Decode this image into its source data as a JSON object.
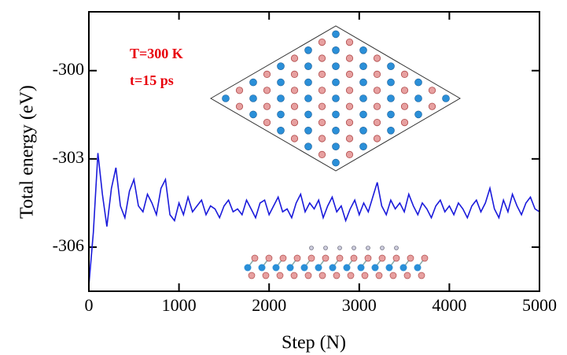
{
  "chart_data": {
    "type": "line",
    "x_label": "Step (N)",
    "y_label": "Total energy (eV)",
    "annotations": [
      "T=300 K",
      "t=15 ps"
    ],
    "xlim": [
      0,
      5000
    ],
    "xticks": [
      0,
      1000,
      2000,
      3000,
      4000,
      5000
    ],
    "ylim": [
      -307.5,
      -298
    ],
    "yticks": [
      -306,
      -303,
      -300
    ],
    "grid": false,
    "x": [
      0,
      50,
      100,
      150,
      200,
      250,
      300,
      350,
      400,
      450,
      500,
      550,
      600,
      650,
      700,
      750,
      800,
      850,
      900,
      950,
      1000,
      1050,
      1100,
      1150,
      1200,
      1250,
      1300,
      1350,
      1400,
      1450,
      1500,
      1550,
      1600,
      1650,
      1700,
      1750,
      1800,
      1850,
      1900,
      1950,
      2000,
      2050,
      2100,
      2150,
      2200,
      2250,
      2300,
      2350,
      2400,
      2450,
      2500,
      2550,
      2600,
      2650,
      2700,
      2750,
      2800,
      2850,
      2900,
      2950,
      3000,
      3050,
      3100,
      3150,
      3200,
      3250,
      3300,
      3350,
      3400,
      3450,
      3500,
      3550,
      3600,
      3650,
      3700,
      3750,
      3800,
      3850,
      3900,
      3950,
      4000,
      4050,
      4100,
      4150,
      4200,
      4250,
      4300,
      4350,
      4400,
      4450,
      4500,
      4550,
      4600,
      4650,
      4700,
      4750,
      4800,
      4850,
      4900,
      4950,
      5000
    ],
    "series": [
      {
        "color": "#1a1adb",
        "values": [
          -307.3,
          -305.5,
          -302.8,
          -304.2,
          -305.3,
          -304.0,
          -303.3,
          -304.6,
          -305.0,
          -304.1,
          -303.7,
          -304.6,
          -304.8,
          -304.2,
          -304.5,
          -304.9,
          -304.0,
          -303.7,
          -304.9,
          -305.1,
          -304.5,
          -304.9,
          -304.3,
          -304.8,
          -304.6,
          -304.4,
          -304.9,
          -304.6,
          -304.7,
          -305.0,
          -304.6,
          -304.4,
          -304.8,
          -304.7,
          -304.9,
          -304.4,
          -304.7,
          -305.0,
          -304.5,
          -304.4,
          -304.9,
          -304.6,
          -304.3,
          -304.8,
          -304.7,
          -305.0,
          -304.5,
          -304.2,
          -304.8,
          -304.5,
          -304.7,
          -304.4,
          -305.0,
          -304.6,
          -304.3,
          -304.8,
          -304.6,
          -305.1,
          -304.7,
          -304.4,
          -304.9,
          -304.5,
          -304.8,
          -304.3,
          -303.8,
          -304.6,
          -304.9,
          -304.4,
          -304.7,
          -304.5,
          -304.8,
          -304.2,
          -304.6,
          -304.9,
          -304.5,
          -304.7,
          -305.0,
          -304.6,
          -304.4,
          -304.8,
          -304.6,
          -304.9,
          -304.5,
          -304.7,
          -305.0,
          -304.6,
          -304.4,
          -304.8,
          -304.5,
          -304.0,
          -304.7,
          -305.0,
          -304.4,
          -304.8,
          -304.2,
          -304.6,
          -304.9,
          -304.5,
          -304.3,
          -304.7,
          -304.8
        ]
      }
    ]
  }
}
